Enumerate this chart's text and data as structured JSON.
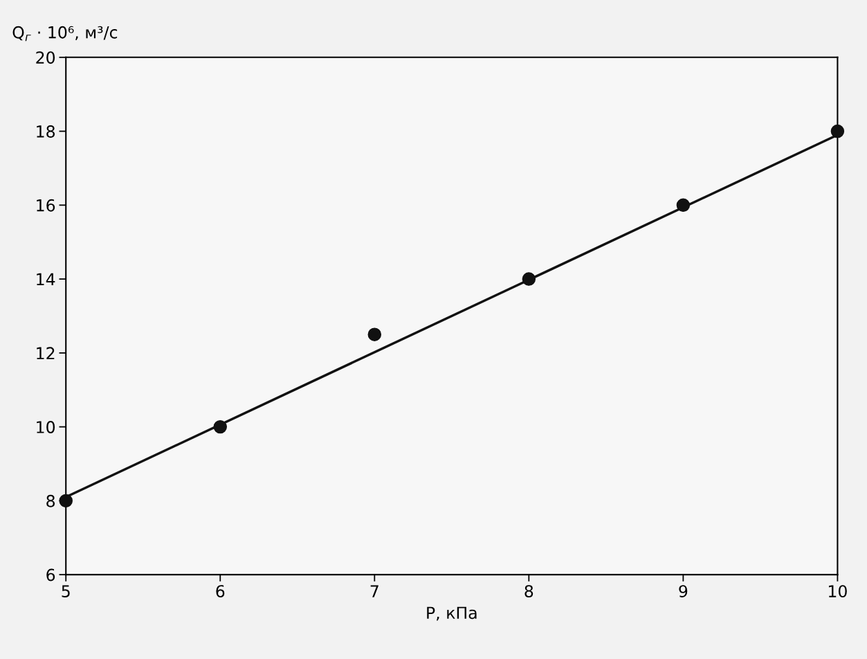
{
  "chart_data": {
    "type": "scatter",
    "xlabel": "P, кПа",
    "ylabel": "Q$_{г}$ · 10⁶, м³/с",
    "x": [
      5,
      6,
      7,
      8,
      9,
      10
    ],
    "series": [
      {
        "color": "#111111",
        "marker": "circle",
        "values": [
          8,
          10,
          12.5,
          14,
          16,
          18
        ]
      },
      {
        "type": "line",
        "color": "#111111",
        "x": [
          5,
          10
        ],
        "values": [
          8.1,
          17.9
        ]
      }
    ],
    "xlim": [
      5,
      10
    ],
    "xticks": [
      5,
      6,
      7,
      8,
      9,
      10
    ],
    "ylim": [
      6,
      20
    ],
    "yticks": [
      6,
      8,
      10,
      12,
      14,
      16,
      18,
      20
    ],
    "grid": false,
    "legend": false
  }
}
